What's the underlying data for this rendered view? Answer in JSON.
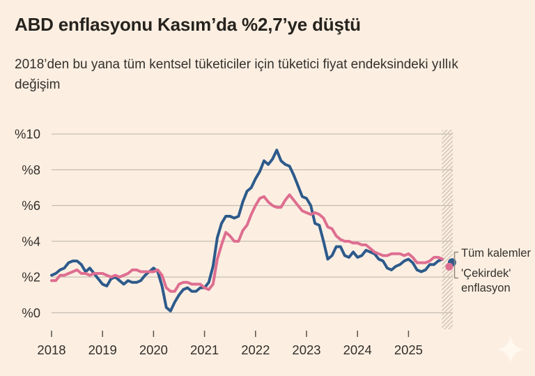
{
  "header": {
    "title": "ABD enflasyonu Kasım’da %2,7’ye düştü",
    "subtitle": "2018’den bu yana tüm kentsel tüketiciler için tüketici fiyat endeksindeki yıllık değişim"
  },
  "colors": {
    "background": "#fcefe2",
    "all_items_line": "#2d5a8b",
    "core_line": "#de6e90",
    "gridline": "#b9b1a8",
    "axis_text": "#322e2a",
    "tick": "#57514b",
    "hatch": "#cfc3b6",
    "bracket": "#8f887e"
  },
  "chart_data": {
    "type": "line",
    "title": "ABD enflasyonu Kasım’da %2,7’ye düştü",
    "subtitle": "2018’den bu yana tüm kentsel tüketiciler için tüketici fiyat endeksindeki yıllık değişim",
    "x_unit": "month",
    "x_start": "2018-01",
    "line_end": "2025-09",
    "xticks": [
      "2018",
      "2019",
      "2020",
      "2021",
      "2022",
      "2023",
      "2024",
      "2025"
    ],
    "yticks": [
      {
        "value": 0,
        "label": "%0"
      },
      {
        "value": 2,
        "label": "%2"
      },
      {
        "value": 4,
        "label": "%4"
      },
      {
        "value": 6,
        "label": "%6"
      },
      {
        "value": 8,
        "label": "%8"
      },
      {
        "value": 10,
        "label": "%10"
      }
    ],
    "ylim": [
      0,
      10
    ],
    "grid": "horizontal-only",
    "legend_position": "right-of-line-ends",
    "series": [
      {
        "name": "Tüm kalemler",
        "color": "#2d5a8b",
        "values": [
          2.1,
          2.2,
          2.4,
          2.5,
          2.8,
          2.9,
          2.9,
          2.7,
          2.3,
          2.5,
          2.2,
          1.9,
          1.6,
          1.5,
          1.9,
          2.0,
          1.8,
          1.6,
          1.8,
          1.7,
          1.7,
          1.8,
          2.1,
          2.3,
          2.5,
          2.3,
          1.5,
          0.3,
          0.1,
          0.6,
          1.0,
          1.3,
          1.4,
          1.2,
          1.2,
          1.4,
          1.4,
          1.7,
          2.6,
          4.2,
          5.0,
          5.4,
          5.4,
          5.3,
          5.4,
          6.2,
          6.8,
          7.0,
          7.5,
          7.9,
          8.5,
          8.3,
          8.6,
          9.1,
          8.5,
          8.3,
          8.2,
          7.7,
          7.1,
          6.5,
          6.4,
          6.0,
          5.0,
          4.9,
          4.0,
          3.0,
          3.2,
          3.7,
          3.7,
          3.2,
          3.1,
          3.4,
          3.1,
          3.2,
          3.5,
          3.4,
          3.3,
          3.0,
          2.9,
          2.5,
          2.4,
          2.6,
          2.7,
          2.9,
          3.0,
          2.8,
          2.4,
          2.3,
          2.4,
          2.7,
          2.7,
          2.9,
          3.0
        ]
      },
      {
        "name": "'Çekirdek' enflasyon",
        "color": "#de6e90",
        "values": [
          1.8,
          1.8,
          2.1,
          2.1,
          2.2,
          2.3,
          2.4,
          2.2,
          2.2,
          2.1,
          2.2,
          2.2,
          2.2,
          2.1,
          2.0,
          2.1,
          2.0,
          2.1,
          2.2,
          2.4,
          2.4,
          2.3,
          2.3,
          2.3,
          2.3,
          2.4,
          2.1,
          1.4,
          1.2,
          1.2,
          1.6,
          1.7,
          1.7,
          1.6,
          1.6,
          1.6,
          1.4,
          1.3,
          1.6,
          3.0,
          3.8,
          4.5,
          4.3,
          4.0,
          4.0,
          4.6,
          4.9,
          5.5,
          6.0,
          6.4,
          6.5,
          6.2,
          6.0,
          5.9,
          5.9,
          6.3,
          6.6,
          6.3,
          6.0,
          5.7,
          5.6,
          5.5,
          5.6,
          5.5,
          5.3,
          4.8,
          4.7,
          4.3,
          4.1,
          4.0,
          4.0,
          3.9,
          3.9,
          3.8,
          3.8,
          3.6,
          3.4,
          3.3,
          3.2,
          3.2,
          3.3,
          3.3,
          3.3,
          3.2,
          3.3,
          3.1,
          2.8,
          2.8,
          2.8,
          2.9,
          3.1,
          3.1,
          3.0
        ]
      }
    ],
    "end_dots": [
      {
        "series": "Tüm kalemler",
        "month": "2025-11",
        "value": 2.7
      },
      {
        "series": "'Çekirdek' enflasyon",
        "month": "2025-11",
        "value": 2.6
      }
    ],
    "data_gap": {
      "start": "2025-09",
      "end": "2025-11",
      "style": "diagonal-hatch-band"
    }
  },
  "legend": {
    "all_items": "Tüm kalemler",
    "core": "'Çekirdek' enflasyon"
  },
  "watermark": {
    "icon": "sparkle-icon"
  }
}
